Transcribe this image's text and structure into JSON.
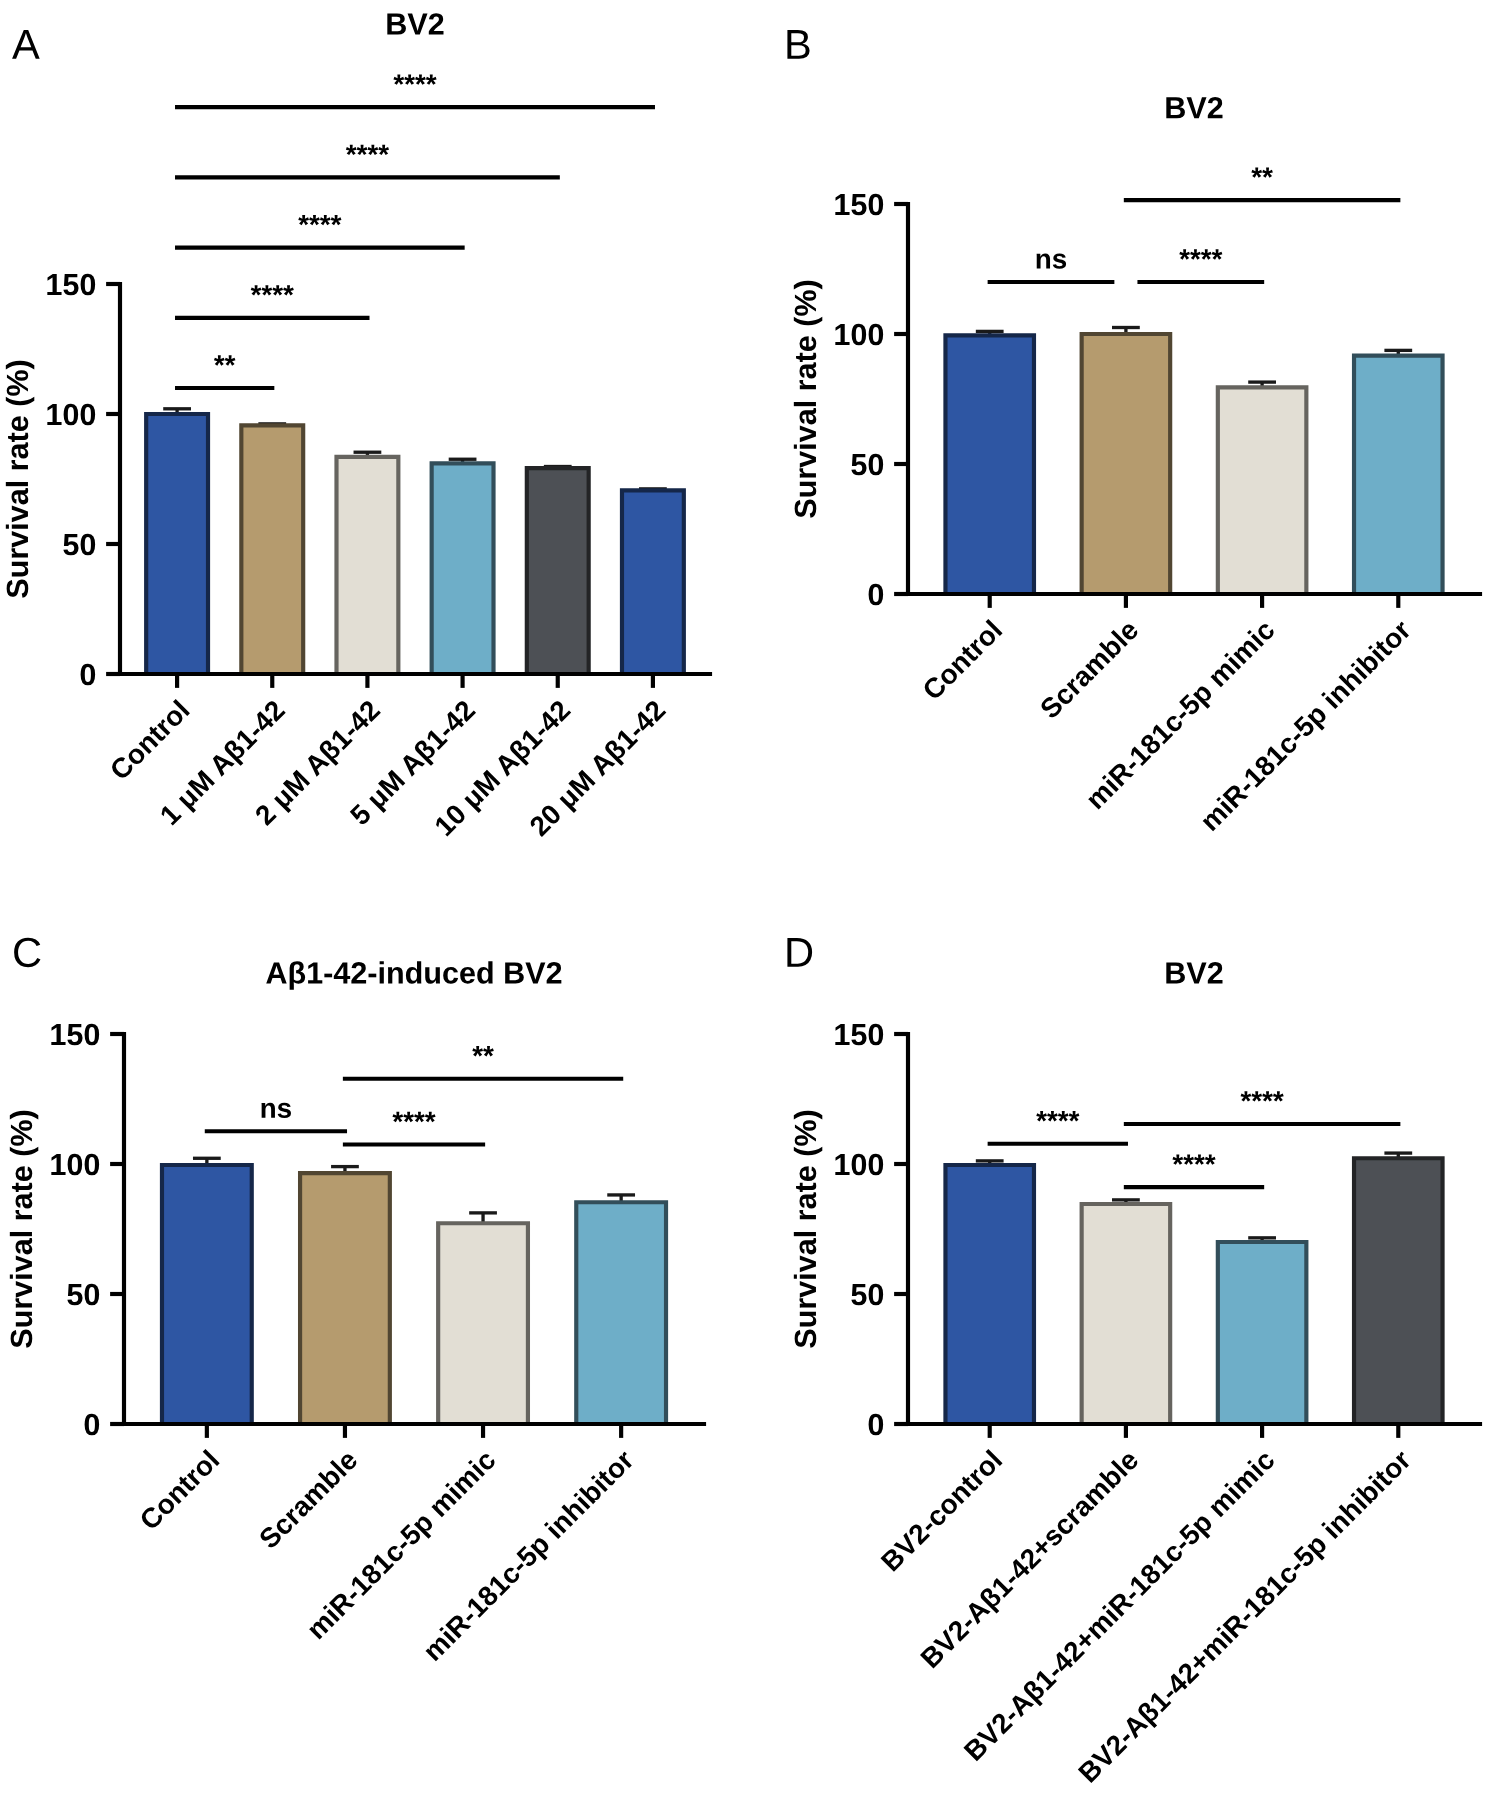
{
  "chart_data": [
    {
      "type": "bar",
      "title": "BV2",
      "ylabel": "Survival rate (%)",
      "categories": [
        "Control",
        "1 μM Aβ1-42",
        "2 μM Aβ1-42",
        "5 μM Aβ1-42",
        "10 μM Aβ1-42",
        "20 μM Aβ1-42"
      ],
      "values": [
        100,
        95.6,
        83.5,
        81,
        79.2,
        70.6
      ],
      "errors": [
        2,
        0.6,
        1.8,
        1.6,
        0.6,
        0.6
      ],
      "colors": [
        "#2e56a3",
        "#b59b6e",
        "#e2ded4",
        "#6eaec8",
        "#4d5055",
        "#2e56a3"
      ],
      "ylim": [
        0,
        150
      ],
      "yticks": [
        0,
        50,
        100,
        150
      ],
      "grid": false,
      "legend": false,
      "annotations": [
        "A",
        "**",
        "****",
        "****",
        "****",
        "****"
      ]
    },
    {
      "type": "bar",
      "title": "BV2",
      "ylabel": "Survival rate (%)",
      "categories": [
        "Control",
        "Scramble",
        "miR-181c-5p mimic",
        "miR-181c-5p inhibitor"
      ],
      "values": [
        99.5,
        100,
        79.5,
        91.7
      ],
      "errors": [
        1.5,
        2.5,
        2,
        2
      ],
      "colors": [
        "#2e56a3",
        "#b59b6e",
        "#e2ded4",
        "#6eaec8"
      ],
      "ylim": [
        0,
        150
      ],
      "yticks": [
        0,
        50,
        100,
        150
      ],
      "grid": false,
      "legend": false,
      "annotations": [
        "B",
        "ns",
        "****",
        "**"
      ]
    },
    {
      "type": "bar",
      "title": "Aβ1-42-induced BV2",
      "ylabel": "Survival rate (%)",
      "categories": [
        "Control",
        "Scramble",
        "miR-181c-5p mimic",
        "miR-181c-5p inhibitor"
      ],
      "values": [
        99.6,
        96.5,
        77.2,
        85.3
      ],
      "errors": [
        2.6,
        2.5,
        4,
        2.8
      ],
      "colors": [
        "#2e56a3",
        "#b59b6e",
        "#e2ded4",
        "#6eaec8"
      ],
      "ylim": [
        0,
        150
      ],
      "yticks": [
        0,
        50,
        100,
        150
      ],
      "grid": false,
      "legend": false,
      "annotations": [
        "C",
        "ns",
        "****",
        "**"
      ]
    },
    {
      "type": "bar",
      "title": "BV2",
      "ylabel": "Survival rate (%)",
      "categories": [
        "BV2-control",
        "BV2-Aβ1-42+scramble",
        "BV2-Aβ1-42+miR-181c-5p mimic",
        "BV2-Aβ1-42+miR-181c-5p inhibitor"
      ],
      "values": [
        99.6,
        84.6,
        70,
        102.2
      ],
      "errors": [
        1.6,
        1.6,
        1.6,
        2
      ],
      "colors": [
        "#2e56a3",
        "#e2ded4",
        "#6eaec8",
        "#4d5055"
      ],
      "ylim": [
        0,
        150
      ],
      "yticks": [
        0,
        50,
        100,
        150
      ],
      "grid": false,
      "legend": false,
      "annotations": [
        "D",
        "****",
        "****",
        "****"
      ]
    }
  ]
}
